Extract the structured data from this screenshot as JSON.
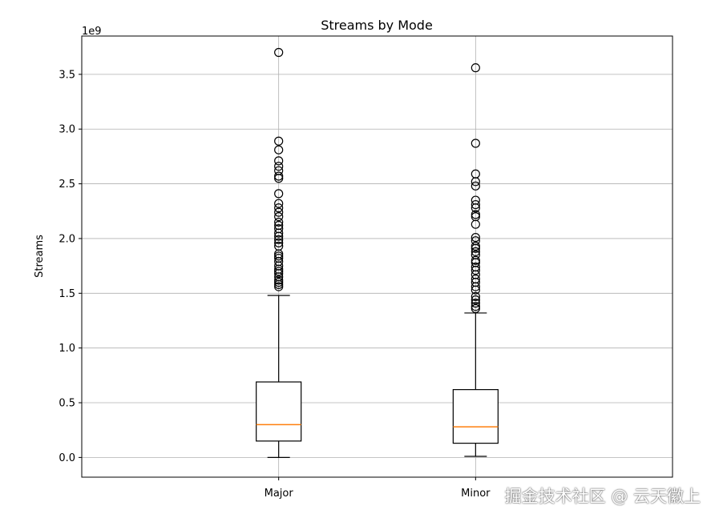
{
  "chart_data": {
    "type": "box",
    "title": "Streams by Mode",
    "xlabel": "",
    "ylabel": "Streams",
    "y_scale_label": "1e9",
    "y_tick_values": [
      0.0,
      0.5,
      1.0,
      1.5,
      2.0,
      2.5,
      3.0,
      3.5
    ],
    "y_tick_labels": [
      "0.0",
      "0.5",
      "1.0",
      "1.5",
      "2.0",
      "2.5",
      "3.0",
      "3.5"
    ],
    "ylim": [
      -0.18,
      3.85
    ],
    "grid": true,
    "categories": [
      "Major",
      "Minor"
    ],
    "boxes": [
      {
        "name": "Major",
        "whisker_low": 0.0,
        "q1": 0.15,
        "median": 0.3,
        "q3": 0.69,
        "whisker_high": 1.48,
        "outliers": [
          1.56,
          1.58,
          1.6,
          1.62,
          1.65,
          1.68,
          1.7,
          1.72,
          1.75,
          1.79,
          1.82,
          1.84,
          1.86,
          1.93,
          1.96,
          1.99,
          2.02,
          2.05,
          2.09,
          2.12,
          2.15,
          2.2,
          2.24,
          2.28,
          2.32,
          2.41,
          2.55,
          2.57,
          2.62,
          2.66,
          2.71,
          2.81,
          2.89,
          3.7
        ]
      },
      {
        "name": "Minor",
        "whisker_low": 0.01,
        "q1": 0.13,
        "median": 0.28,
        "q3": 0.62,
        "whisker_high": 1.32,
        "outliers": [
          1.36,
          1.38,
          1.41,
          1.44,
          1.47,
          1.53,
          1.56,
          1.6,
          1.63,
          1.67,
          1.71,
          1.74,
          1.78,
          1.8,
          1.85,
          1.88,
          1.91,
          1.93,
          1.98,
          2.01,
          2.13,
          2.2,
          2.22,
          2.28,
          2.31,
          2.35,
          2.48,
          2.52,
          2.59,
          2.87,
          3.56
        ]
      }
    ],
    "median_color": "#ff7f0e",
    "box_color": "#000000",
    "grid_color": "#b0b0b0"
  },
  "watermark": "掘金技术社区 @ 云天徽上"
}
